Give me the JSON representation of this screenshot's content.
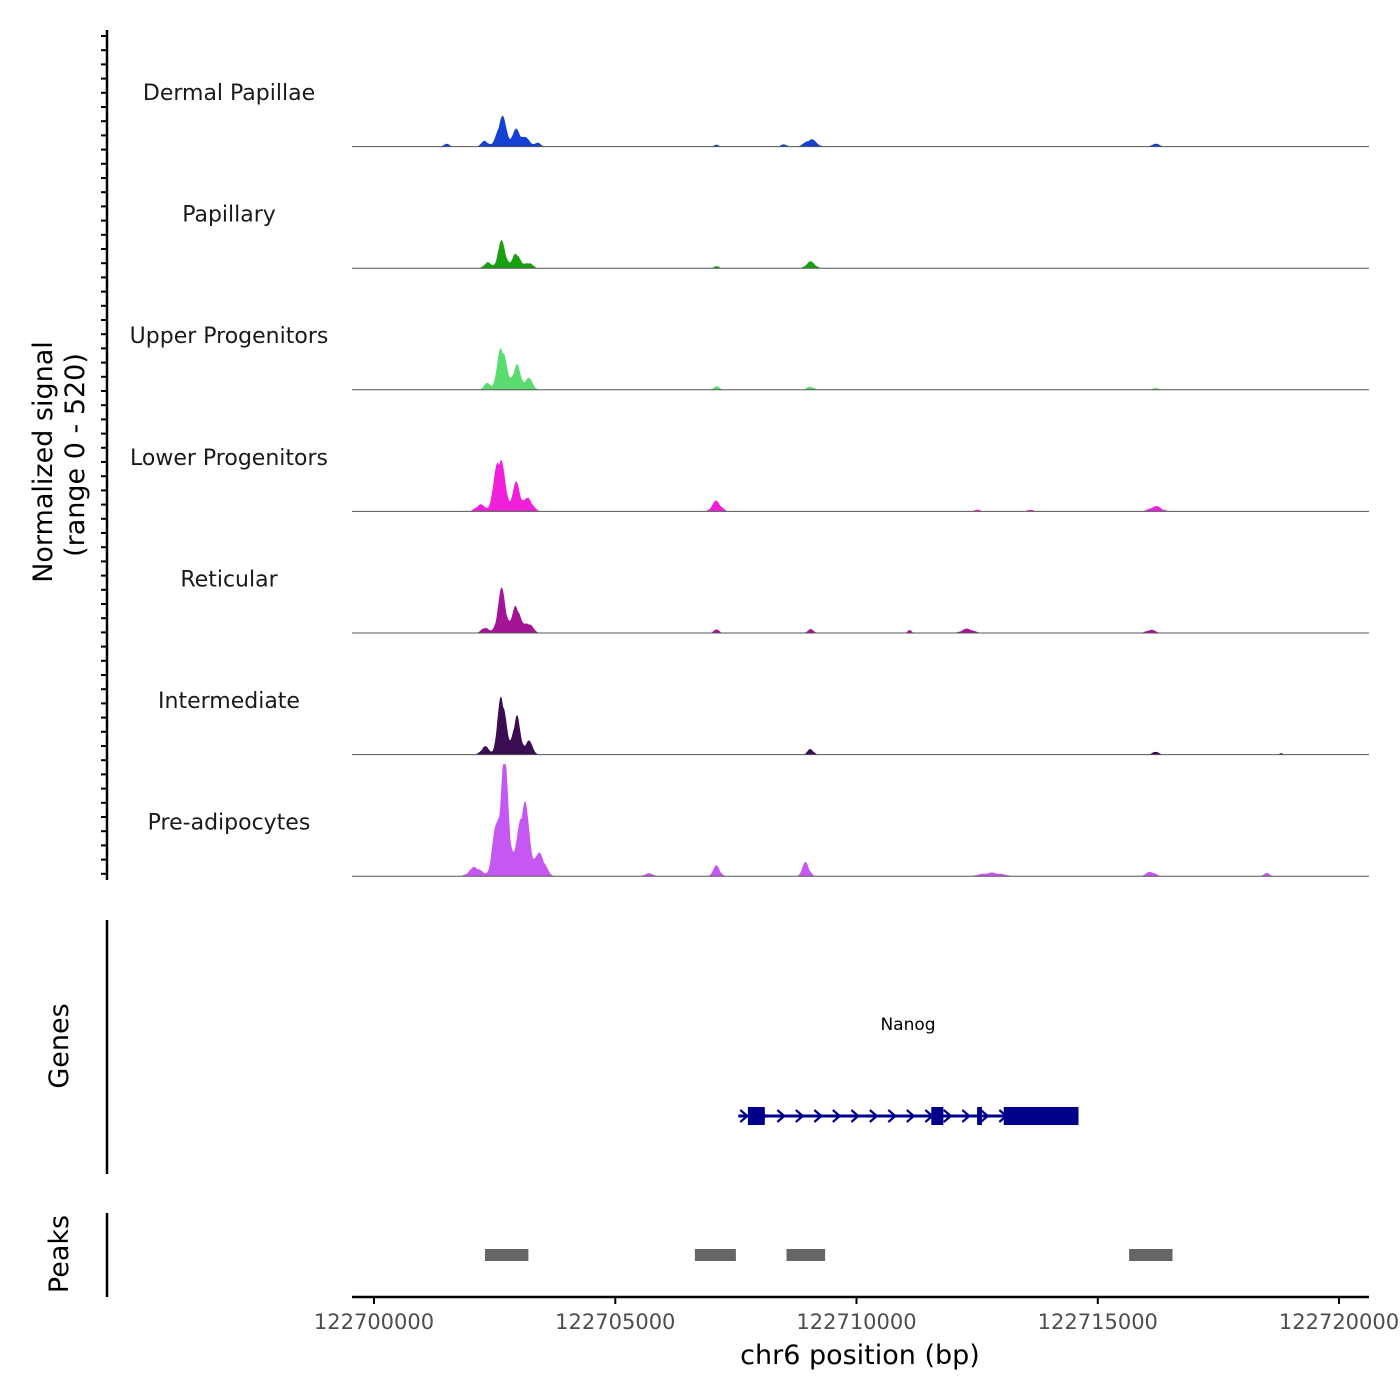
{
  "chart_data": {
    "type": "area",
    "chromosome": "chr6",
    "region": [
      122699600,
      122720600
    ],
    "xlabel": "chr6 position (bp)",
    "x_ticks": [
      122700000,
      122705000,
      122710000,
      122715000,
      122720000
    ],
    "x_tick_labels": [
      "122700000",
      "122705000",
      "122710000",
      "122715000",
      "122720000"
    ],
    "ylabel_line1": "Normalized signal",
    "ylabel_line2": "(range 0 - 520)",
    "ylim": [
      0,
      520
    ],
    "peak_mode_centers": [
      122702600,
      122703300,
      122704100,
      122707000,
      122709000,
      122712300,
      122713200,
      122716300
    ],
    "series": [
      {
        "name": "Dermal Papillae",
        "color": "#1440d4",
        "peaks": [
          {
            "pos": 122702650,
            "width": 90,
            "height": 130
          },
          {
            "pos": 122702950,
            "width": 80,
            "height": 70
          },
          {
            "pos": 122703150,
            "width": 90,
            "height": 35
          },
          {
            "pos": 122702300,
            "width": 70,
            "height": 25
          },
          {
            "pos": 122703400,
            "width": 60,
            "height": 15
          },
          {
            "pos": 122709050,
            "width": 110,
            "height": 32
          },
          {
            "pos": 122708500,
            "width": 60,
            "height": 10
          },
          {
            "pos": 122707100,
            "width": 50,
            "height": 8
          },
          {
            "pos": 122716200,
            "width": 80,
            "height": 12
          },
          {
            "pos": 122701500,
            "width": 60,
            "height": 12
          }
        ]
      },
      {
        "name": "Papillary",
        "color": "#19a012",
        "peaks": [
          {
            "pos": 122702650,
            "width": 80,
            "height": 115
          },
          {
            "pos": 122702950,
            "width": 70,
            "height": 70
          },
          {
            "pos": 122703200,
            "width": 80,
            "height": 25
          },
          {
            "pos": 122702350,
            "width": 70,
            "height": 25
          },
          {
            "pos": 122709050,
            "width": 90,
            "height": 28
          },
          {
            "pos": 122707100,
            "width": 50,
            "height": 10
          }
        ]
      },
      {
        "name": "Upper Progenitors",
        "color": "#5bdc70",
        "peaks": [
          {
            "pos": 122702650,
            "width": 85,
            "height": 200
          },
          {
            "pos": 122702950,
            "width": 75,
            "height": 110
          },
          {
            "pos": 122703200,
            "width": 85,
            "height": 50
          },
          {
            "pos": 122702350,
            "width": 70,
            "height": 28
          },
          {
            "pos": 122707100,
            "width": 60,
            "height": 15
          },
          {
            "pos": 122709050,
            "width": 70,
            "height": 14
          },
          {
            "pos": 122716200,
            "width": 60,
            "height": 8
          }
        ]
      },
      {
        "name": "Lower Progenitors",
        "color": "#f01fd9",
        "peaks": [
          {
            "pos": 122702600,
            "width": 100,
            "height": 250
          },
          {
            "pos": 122702950,
            "width": 80,
            "height": 120
          },
          {
            "pos": 122703200,
            "width": 90,
            "height": 55
          },
          {
            "pos": 122702200,
            "width": 90,
            "height": 30
          },
          {
            "pos": 122707100,
            "width": 90,
            "height": 45
          },
          {
            "pos": 122716200,
            "width": 120,
            "height": 22
          },
          {
            "pos": 122712500,
            "width": 60,
            "height": 8
          },
          {
            "pos": 122713600,
            "width": 60,
            "height": 8
          }
        ]
      },
      {
        "name": "Reticular",
        "color": "#a41497",
        "peaks": [
          {
            "pos": 122702650,
            "width": 85,
            "height": 185
          },
          {
            "pos": 122702950,
            "width": 75,
            "height": 125
          },
          {
            "pos": 122703200,
            "width": 85,
            "height": 45
          },
          {
            "pos": 122702300,
            "width": 70,
            "height": 25
          },
          {
            "pos": 122707100,
            "width": 50,
            "height": 18
          },
          {
            "pos": 122709050,
            "width": 60,
            "height": 16
          },
          {
            "pos": 122712300,
            "width": 120,
            "height": 18
          },
          {
            "pos": 122711100,
            "width": 40,
            "height": 12
          },
          {
            "pos": 122716100,
            "width": 90,
            "height": 14
          }
        ]
      },
      {
        "name": "Intermediate",
        "color": "#3a0c52",
        "peaks": [
          {
            "pos": 122702650,
            "width": 80,
            "height": 270
          },
          {
            "pos": 122702950,
            "width": 70,
            "height": 175
          },
          {
            "pos": 122703200,
            "width": 80,
            "height": 60
          },
          {
            "pos": 122702300,
            "width": 80,
            "height": 35
          },
          {
            "pos": 122709050,
            "width": 60,
            "height": 25
          },
          {
            "pos": 122716200,
            "width": 60,
            "height": 14
          },
          {
            "pos": 122718800,
            "width": 40,
            "height": 6
          }
        ]
      },
      {
        "name": "Pre-adipocytes",
        "color": "#c558f1",
        "peaks": [
          {
            "pos": 122702700,
            "width": 90,
            "height": 500
          },
          {
            "pos": 122703100,
            "width": 110,
            "height": 330
          },
          {
            "pos": 122702500,
            "width": 70,
            "height": 150
          },
          {
            "pos": 122703450,
            "width": 100,
            "height": 95
          },
          {
            "pos": 122702100,
            "width": 120,
            "height": 40
          },
          {
            "pos": 122707100,
            "width": 70,
            "height": 45
          },
          {
            "pos": 122708950,
            "width": 70,
            "height": 60
          },
          {
            "pos": 122712800,
            "width": 220,
            "height": 15
          },
          {
            "pos": 122716100,
            "width": 90,
            "height": 20
          },
          {
            "pos": 122718500,
            "width": 60,
            "height": 14
          },
          {
            "pos": 122705700,
            "width": 90,
            "height": 12
          }
        ]
      }
    ],
    "genes_track_label": "Genes",
    "genes": [
      {
        "name": "Nanog",
        "strand": "+",
        "start": 122707550,
        "end": 122714600,
        "exons": [
          [
            122707750,
            122708100
          ],
          [
            122711550,
            122711800
          ],
          [
            122712500,
            122712600
          ],
          [
            122713050,
            122714600
          ]
        ],
        "color": "#00008b"
      }
    ],
    "peaks_track_label": "Peaks",
    "peak_regions": [
      [
        122702300,
        122703200
      ],
      [
        122706650,
        122707500
      ],
      [
        122708550,
        122709350
      ],
      [
        122715650,
        122716550
      ]
    ],
    "peak_color": "#666666"
  }
}
